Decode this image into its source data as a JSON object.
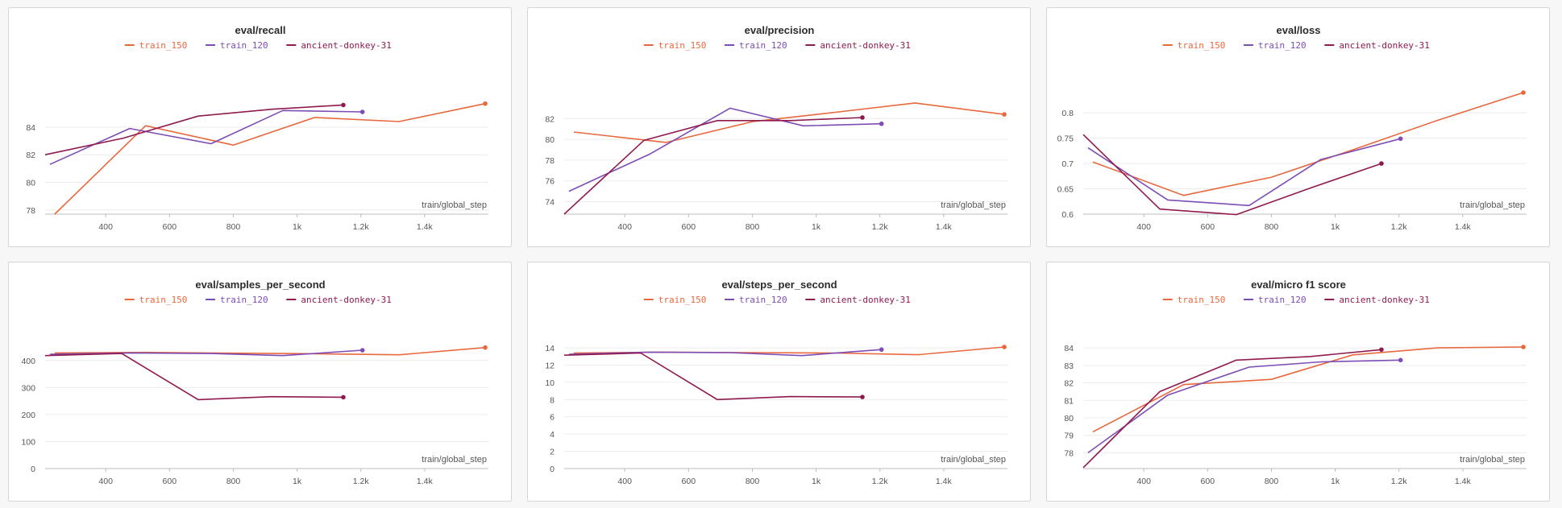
{
  "panels": [
    {
      "chart_data": {
        "type": "line",
        "title": "eval/recall",
        "xlabel": "train/global_step",
        "x_ticks": [
          400,
          600,
          800,
          1000,
          1200,
          1400
        ],
        "x_tick_labels": [
          "400",
          "600",
          "800",
          "1k",
          "1.2k",
          "1.4k"
        ],
        "y_ticks": [
          78,
          80,
          82,
          84
        ],
        "xlim": [
          210,
          1600
        ],
        "ylim": [
          77.7,
          86.5
        ],
        "series": [
          {
            "name": "train_150",
            "color": "#e8683e",
            "x": [
              240,
              525,
              800,
              1055,
              1320,
              1590
            ],
            "y": [
              77.7,
              84.1,
              82.7,
              84.7,
              84.4,
              85.7
            ]
          },
          {
            "name": "train_120",
            "color": "#7e4db4",
            "x": [
              225,
              475,
              730,
              955,
              1205
            ],
            "y": [
              81.3,
              83.9,
              82.8,
              85.2,
              85.1
            ]
          },
          {
            "name": "ancient-donkey-31",
            "color": "#8f1a4f",
            "x": [
              210,
              455,
              690,
              925,
              1145
            ],
            "y": [
              82.0,
              83.2,
              84.8,
              85.3,
              85.6
            ]
          }
        ]
      }
    },
    {
      "chart_data": {
        "type": "line",
        "title": "eval/precision",
        "xlabel": "train/global_step",
        "x_ticks": [
          400,
          600,
          800,
          1000,
          1200,
          1400
        ],
        "x_tick_labels": [
          "400",
          "600",
          "800",
          "1k",
          "1.2k",
          "1.4k"
        ],
        "y_ticks": [
          74,
          76,
          78,
          80,
          82
        ],
        "xlim": [
          210,
          1600
        ],
        "ylim": [
          72.8,
          84.5
        ],
        "series": [
          {
            "name": "train_150",
            "color": "#e8683e",
            "x": [
              240,
              530,
              800,
              1060,
              1310,
              1590
            ],
            "y": [
              80.7,
              79.7,
              81.7,
              82.6,
              83.5,
              82.4
            ]
          },
          {
            "name": "train_120",
            "color": "#7e4db4",
            "x": [
              225,
              480,
              730,
              960,
              1205
            ],
            "y": [
              75.0,
              78.6,
              83.0,
              81.3,
              81.5
            ]
          },
          {
            "name": "ancient-donkey-31",
            "color": "#8f1a4f",
            "x": [
              210,
              460,
              690,
              920,
              1145
            ],
            "y": [
              72.8,
              79.9,
              81.8,
              81.8,
              82.1
            ]
          }
        ]
      }
    },
    {
      "chart_data": {
        "type": "line",
        "title": "eval/loss",
        "xlabel": "train/global_step",
        "x_ticks": [
          400,
          600,
          800,
          1000,
          1200,
          1400
        ],
        "x_tick_labels": [
          "400",
          "600",
          "800",
          "1k",
          "1.2k",
          "1.4k"
        ],
        "y_ticks": [
          0.6,
          0.65,
          0.7,
          0.75,
          0.8
        ],
        "xlim": [
          210,
          1600
        ],
        "ylim": [
          0.6,
          0.84
        ],
        "series": [
          {
            "name": "train_150",
            "color": "#e8683e",
            "x": [
              240,
              525,
              800,
              1055,
              1320,
              1590
            ],
            "y": [
              0.703,
              0.637,
              0.673,
              0.727,
              0.785,
              0.84
            ]
          },
          {
            "name": "train_120",
            "color": "#7e4db4",
            "x": [
              225,
              475,
              730,
              955,
              1205
            ],
            "y": [
              0.731,
              0.628,
              0.617,
              0.708,
              0.749
            ]
          },
          {
            "name": "ancient-donkey-31",
            "color": "#8f1a4f",
            "x": [
              210,
              450,
              690,
              920,
              1145
            ],
            "y": [
              0.757,
              0.61,
              0.599,
              0.651,
              0.7
            ]
          }
        ]
      }
    },
    {
      "chart_data": {
        "type": "line",
        "title": "eval/samples_per_second",
        "xlabel": "train/global_step",
        "x_ticks": [
          400,
          600,
          800,
          1000,
          1200,
          1400
        ],
        "x_tick_labels": [
          "400",
          "600",
          "800",
          "1k",
          "1.2k",
          "1.4k"
        ],
        "y_ticks": [
          0,
          100,
          200,
          300,
          400
        ],
        "xlim": [
          210,
          1600
        ],
        "ylim": [
          0,
          450
        ],
        "series": [
          {
            "name": "train_150",
            "color": "#e8683e",
            "x": [
              240,
              525,
              800,
              1055,
              1320,
              1590
            ],
            "y": [
              428,
              430,
              427,
              425,
              421,
              448
            ]
          },
          {
            "name": "train_120",
            "color": "#7e4db4",
            "x": [
              225,
              475,
              730,
              955,
              1205
            ],
            "y": [
              423,
              428,
              426,
              418,
              438
            ]
          },
          {
            "name": "ancient-donkey-31",
            "color": "#8f1a4f",
            "x": [
              210,
              450,
              690,
              920,
              1145
            ],
            "y": [
              418,
              426,
              255,
              266,
              264
            ]
          }
        ]
      }
    },
    {
      "chart_data": {
        "type": "line",
        "title": "eval/steps_per_second",
        "xlabel": "train/global_step",
        "x_ticks": [
          400,
          600,
          800,
          1000,
          1200,
          1400
        ],
        "x_tick_labels": [
          "400",
          "600",
          "800",
          "1k",
          "1.2k",
          "1.4k"
        ],
        "y_ticks": [
          0,
          2,
          4,
          6,
          8,
          10,
          12,
          14
        ],
        "xlim": [
          210,
          1600
        ],
        "ylim": [
          0,
          14.1
        ],
        "series": [
          {
            "name": "train_150",
            "color": "#e8683e",
            "x": [
              240,
              525,
              800,
              1055,
              1320,
              1590
            ],
            "y": [
              13.4,
              13.5,
              13.45,
              13.4,
              13.2,
              14.1
            ]
          },
          {
            "name": "train_120",
            "color": "#7e4db4",
            "x": [
              225,
              475,
              730,
              955,
              1205
            ],
            "y": [
              13.25,
              13.5,
              13.45,
              13.1,
              13.8
            ]
          },
          {
            "name": "ancient-donkey-31",
            "color": "#8f1a4f",
            "x": [
              210,
              450,
              690,
              920,
              1145
            ],
            "y": [
              13.15,
              13.4,
              8.0,
              8.35,
              8.3
            ]
          }
        ]
      }
    },
    {
      "chart_data": {
        "type": "line",
        "title": "eval/micro f1 score",
        "xlabel": "train/global_step",
        "x_ticks": [
          400,
          600,
          800,
          1000,
          1200,
          1400
        ],
        "x_tick_labels": [
          "400",
          "600",
          "800",
          "1k",
          "1.2k",
          "1.4k"
        ],
        "y_ticks": [
          78,
          79,
          80,
          81,
          82,
          83,
          84
        ],
        "xlim": [
          210,
          1600
        ],
        "ylim": [
          77.1,
          84.05
        ],
        "series": [
          {
            "name": "train_150",
            "color": "#e8683e",
            "x": [
              240,
              525,
              800,
              1055,
              1320,
              1590
            ],
            "y": [
              79.2,
              81.9,
              82.2,
              83.6,
              84.0,
              84.05
            ]
          },
          {
            "name": "train_120",
            "color": "#7e4db4",
            "x": [
              225,
              475,
              730,
              955,
              1205
            ],
            "y": [
              78.0,
              81.3,
              82.9,
              83.2,
              83.3
            ]
          },
          {
            "name": "ancient-donkey-31",
            "color": "#8f1a4f",
            "x": [
              210,
              450,
              690,
              920,
              1145
            ],
            "y": [
              77.15,
              81.5,
              83.3,
              83.5,
              83.9
            ]
          }
        ]
      }
    }
  ]
}
